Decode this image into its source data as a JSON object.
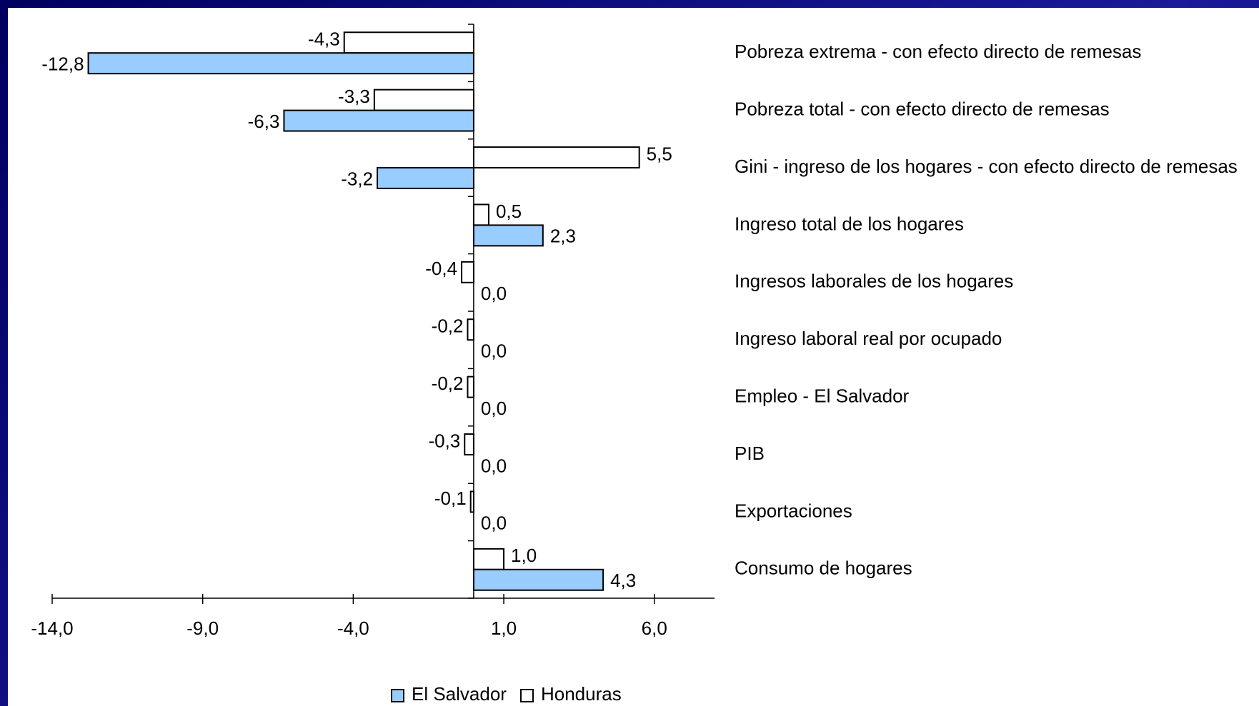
{
  "chart_data": {
    "type": "bar",
    "orientation": "horizontal",
    "categories": [
      "Pobreza extrema - con efecto directo de remesas",
      "Pobreza total - con efecto directo de remesas",
      "Gini - ingreso de los hogares - con efecto directo de remesas",
      "Ingreso total de los hogares",
      "Ingresos laborales de los hogares",
      "Ingreso laboral real por ocupado",
      "Empleo - El Salvador",
      "PIB",
      "Exportaciones",
      "Consumo de hogares"
    ],
    "series": [
      {
        "name": "Honduras",
        "color": "#ffffff",
        "values": [
          -4.3,
          -3.3,
          5.5,
          0.5,
          -0.4,
          -0.2,
          -0.2,
          -0.3,
          -0.1,
          1.0
        ],
        "value_labels": [
          "-4,3",
          "-3,3",
          "5,5",
          "0,5",
          "-0,4",
          "-0,2",
          "-0,2",
          "-0,3",
          "-0,1",
          "1,0"
        ]
      },
      {
        "name": "El Salvador",
        "color": "#99ccff",
        "values": [
          -12.8,
          -6.3,
          -3.2,
          2.3,
          0,
          0,
          0,
          0,
          0,
          4.3
        ],
        "value_labels": [
          "-12,8",
          "-6,3",
          "-3,2",
          "2,3",
          "0,0",
          "0,0",
          "0,0",
          "0,0",
          "0,0",
          "4,3"
        ]
      }
    ],
    "legend_order": [
      "El Salvador",
      "Honduras"
    ],
    "xlim": [
      -14,
      8
    ],
    "xticks": [
      {
        "value": -14,
        "label": "-14,0"
      },
      {
        "value": -9,
        "label": "-9,0"
      },
      {
        "value": -4,
        "label": "-4,0"
      },
      {
        "value": 1,
        "label": "1,0"
      },
      {
        "value": 6,
        "label": "6,0"
      }
    ],
    "legend": "bottom"
  }
}
